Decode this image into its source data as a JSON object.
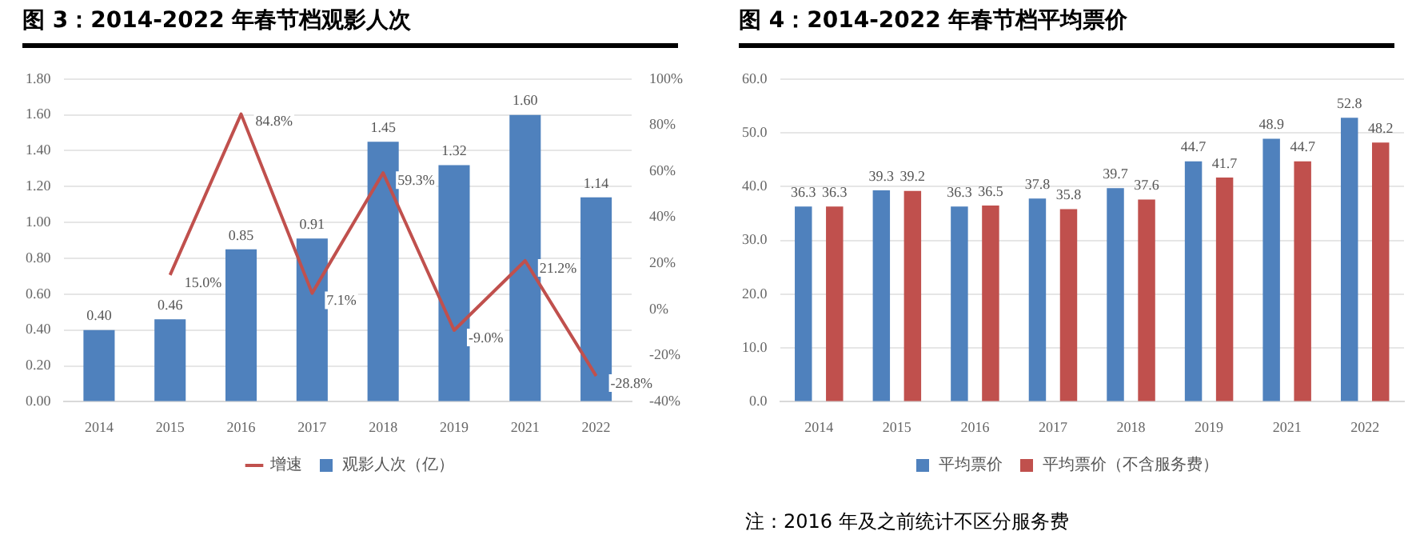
{
  "chart_data": [
    {
      "type": "bar",
      "title": "图 3：2014-2022 年春节档观影人次",
      "categories": [
        "2014",
        "2015",
        "2016",
        "2017",
        "2018",
        "2019",
        "2021",
        "2022"
      ],
      "series": [
        {
          "name": "观影人次（亿）",
          "color": "#4f81bd",
          "values": [
            0.4,
            0.46,
            0.85,
            0.91,
            1.45,
            1.32,
            1.6,
            1.14
          ],
          "value_labels": [
            "0.40",
            "0.46",
            "0.85",
            "0.91",
            "1.45",
            "1.32",
            "1.60",
            "1.14"
          ]
        },
        {
          "name": "增速",
          "type": "line",
          "axis": "y2",
          "color": "#c0504d",
          "values": [
            null,
            15.0,
            84.8,
            7.1,
            59.3,
            -9.0,
            21.2,
            -28.8
          ],
          "value_labels": [
            null,
            "15.0%",
            "84.8%",
            "7.1%",
            "59.3%",
            "-9.0%",
            "21.2%",
            "-28.8%"
          ]
        }
      ],
      "ylim": [
        0,
        1.8
      ],
      "yticks": [
        {
          "value": 0,
          "label": "0.00"
        },
        {
          "value": 0.2,
          "label": "0.20"
        },
        {
          "value": 0.4,
          "label": "0.40"
        },
        {
          "value": 0.6,
          "label": "0.60"
        },
        {
          "value": 0.8,
          "label": "0.80"
        },
        {
          "value": 1,
          "label": "1.00"
        },
        {
          "value": 1.2,
          "label": "1.20"
        },
        {
          "value": 1.4,
          "label": "1.40"
        },
        {
          "value": 1.6,
          "label": "1.60"
        },
        {
          "value": 1.8,
          "label": "1.80"
        }
      ],
      "y2lim": [
        -40,
        100
      ],
      "y2ticks": [
        {
          "value": -40,
          "label": "-40%"
        },
        {
          "value": -20,
          "label": "-20%"
        },
        {
          "value": 0,
          "label": "0%"
        },
        {
          "value": 20,
          "label": "20%"
        },
        {
          "value": 40,
          "label": "40%"
        },
        {
          "value": 60,
          "label": "60%"
        },
        {
          "value": 80,
          "label": "80%"
        },
        {
          "value": 100,
          "label": "100%"
        }
      ],
      "grid": "y",
      "legend": "bottom",
      "marker": "none",
      "line_style": "solid"
    },
    {
      "type": "bar",
      "title": "图 4：2014-2022 年春节档平均票价",
      "categories": [
        "2014",
        "2015",
        "2016",
        "2017",
        "2018",
        "2019",
        "2021",
        "2022"
      ],
      "series": [
        {
          "name": "平均票价",
          "color": "#4f81bd",
          "values": [
            36.3,
            39.3,
            36.3,
            37.8,
            39.7,
            44.7,
            48.9,
            52.8
          ],
          "value_labels": [
            "36.3",
            "39.3",
            "36.3",
            "37.8",
            "39.7",
            "44.7",
            "48.9",
            "52.8"
          ]
        },
        {
          "name": "平均票价（不含服务费）",
          "color": "#c0504d",
          "values": [
            36.3,
            39.2,
            36.5,
            35.8,
            37.6,
            41.7,
            44.7,
            48.2
          ],
          "value_labels": [
            "36.3",
            "39.2",
            "36.5",
            "35.8",
            "37.6",
            "41.7",
            "44.7",
            "48.2"
          ]
        }
      ],
      "ylim": [
        0,
        60
      ],
      "yticks": [
        {
          "value": 0,
          "label": "0.0"
        },
        {
          "value": 10,
          "label": "10.0"
        },
        {
          "value": 20,
          "label": "20.0"
        },
        {
          "value": 30,
          "label": "30.0"
        },
        {
          "value": 40,
          "label": "40.0"
        },
        {
          "value": 50,
          "label": "50.0"
        },
        {
          "value": 60,
          "label": "60.0"
        }
      ],
      "grid": "y",
      "legend": "bottom",
      "annotations": [
        "注：2016 年及之前统计不区分服务费"
      ]
    }
  ]
}
